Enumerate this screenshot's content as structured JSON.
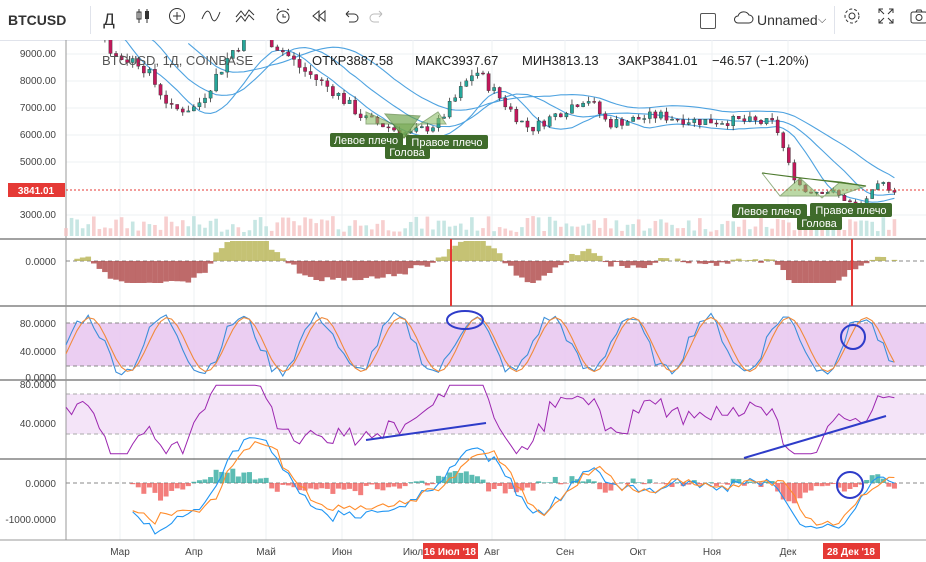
{
  "toolbar": {
    "symbol": "BTCUSD",
    "interval": "Д",
    "icon_candles": "candles-icon",
    "icon_add": "plus-icon",
    "icon_indicators": "indicators-icon",
    "icon_compare": "compare-icon",
    "icon_alert": "alarm-icon",
    "icon_replay": "replay-icon",
    "icon_undo": "undo-icon",
    "icon_redo": "redo-icon",
    "layout_name": "Unnamed",
    "icon_settings": "gear-icon",
    "icon_fullscreen": "fullscreen-icon",
    "icon_snapshot": "camera-icon"
  },
  "legend": {
    "symbol_text": "BTCUSD, 1Д, COINBASE",
    "open": "ОТКР3887.58",
    "high": "МАКС3937.67",
    "low": "МИН3813.13",
    "close": "ЗАКР3841.01",
    "change": "−46.57 (−1.20%)"
  },
  "price_label": "3841.01",
  "annotations": {
    "left_shoulder_1": "Левое плечо",
    "head_1": "Голова",
    "right_shoulder_1": "Правое плечо",
    "left_shoulder_2": "Левое плечо",
    "head_2": "Голова",
    "right_shoulder_2": "Правое плечо"
  },
  "time_markers": [
    "16 Июл '18",
    "28 Дек '18"
  ],
  "colors": {
    "up": "#26a69a",
    "down": "#c2185b",
    "ma": "#4fa3e0",
    "pattern": "#5b8f3b",
    "stoch_bg": "#e1bee7",
    "marker": "#e53935",
    "drawing": "#2e3cc9"
  },
  "chart_data": [
    {
      "type": "line",
      "name_of_panel": "price",
      "x": [
        "Мар",
        "Апр",
        "Май",
        "Июн",
        "Июл",
        "Авг",
        "Сен",
        "Окт",
        "Ноя",
        "Дек"
      ],
      "series_points": [
        [
          "2018-02-20",
          10500
        ],
        [
          "2018-03-01",
          10800
        ],
        [
          "2018-03-10",
          8800
        ],
        [
          "2018-03-20",
          8600
        ],
        [
          "2018-04-01",
          6800
        ],
        [
          "2018-04-10",
          6900
        ],
        [
          "2018-04-25",
          9200
        ],
        [
          "2018-05-05",
          9700
        ],
        [
          "2018-05-20",
          8300
        ],
        [
          "2018-06-01",
          7500
        ],
        [
          "2018-06-12",
          6500
        ],
        [
          "2018-06-29",
          5900
        ],
        [
          "2018-07-10",
          6300
        ],
        [
          "2018-07-24",
          8300
        ],
        [
          "2018-08-10",
          6400
        ],
        [
          "2018-08-14",
          6100
        ],
        [
          "2018-09-04",
          7300
        ],
        [
          "2018-09-12",
          6300
        ],
        [
          "2018-10-01",
          6600
        ],
        [
          "2018-10-15",
          6400
        ],
        [
          "2018-11-01",
          6400
        ],
        [
          "2018-11-14",
          6300
        ],
        [
          "2018-11-20",
          4500
        ],
        [
          "2018-11-25",
          3800
        ],
        [
          "2018-12-05",
          3800
        ],
        [
          "2018-12-15",
          3200
        ],
        [
          "2018-12-24",
          4100
        ],
        [
          "2018-12-28",
          3841
        ]
      ],
      "yticks": [
        9000,
        8000,
        7000,
        6000,
        5000,
        3000
      ],
      "ylim": [
        2700,
        10000
      ]
    },
    {
      "type": "bar",
      "name_of_panel": "histogram-oscillator",
      "yticks": [
        0
      ]
    },
    {
      "type": "line",
      "name_of_panel": "stochastic",
      "yticks": [
        80,
        40,
        0
      ],
      "ylim": [
        0,
        100
      ],
      "bands": [
        80,
        20
      ]
    },
    {
      "type": "line",
      "name_of_panel": "rsi",
      "yticks": [
        80,
        40
      ],
      "ylim": [
        10,
        85
      ],
      "bands": [
        70,
        30
      ]
    },
    {
      "type": "bar",
      "name_of_panel": "macd",
      "yticks": [
        0,
        -1000
      ],
      "ylim": [
        -1400,
        500
      ]
    }
  ],
  "axis_labels": {
    "price_ticks": [
      "9000.00",
      "8000.00",
      "7000.00",
      "6000.00",
      "5000.00",
      "3000.00"
    ],
    "osc_ticks": [
      "0.0000"
    ],
    "stoch_ticks": [
      "80.0000",
      "40.0000",
      "0.0000"
    ],
    "rsi_ticks": [
      "80.0000",
      "40.0000"
    ],
    "macd_ticks": [
      "0.0000",
      "-1000.0000"
    ],
    "months": [
      "Мар",
      "Апр",
      "Май",
      "Июн",
      "Июл",
      "Авг",
      "Сен",
      "Окт",
      "Ноя",
      "Дек"
    ]
  }
}
